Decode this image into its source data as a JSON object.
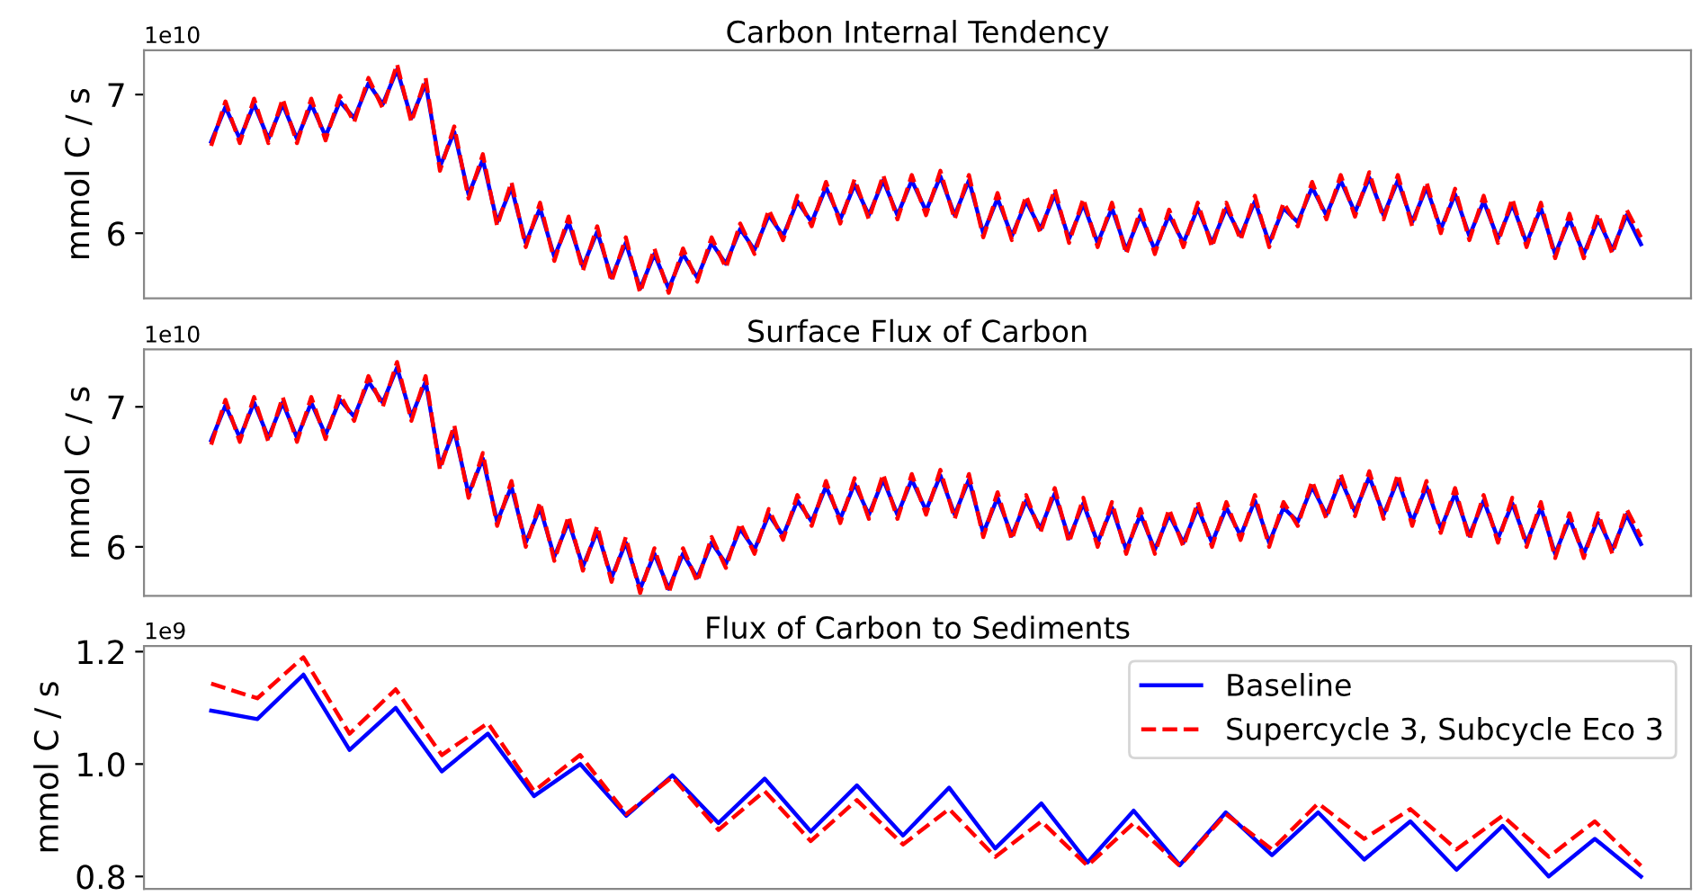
{
  "chart_data": [
    {
      "type": "line",
      "title": "Carbon Internal Tendency",
      "ylabel": "mmol C / s",
      "annotations": [
        "1e10"
      ],
      "categories": [
        null,
        null,
        null,
        null,
        null,
        null,
        null,
        null,
        null,
        null,
        null,
        null,
        null,
        null,
        null,
        null,
        null,
        null,
        null,
        null,
        null,
        null,
        null,
        null,
        null,
        null,
        null,
        null,
        null,
        null,
        null,
        null,
        null,
        null,
        null,
        null,
        null,
        null,
        null,
        null,
        null,
        null,
        null,
        null,
        null,
        null,
        null,
        null,
        null,
        null,
        null,
        null,
        null,
        null,
        null,
        null,
        null,
        null,
        null,
        null,
        null,
        null,
        null,
        null,
        null,
        null,
        null,
        null,
        null,
        null,
        null,
        null,
        null,
        null,
        null,
        null,
        null,
        null,
        null,
        null,
        null,
        null,
        null,
        null,
        null,
        null,
        null,
        null,
        null,
        null,
        null,
        null,
        null,
        null,
        null,
        null,
        null,
        null,
        null,
        null,
        null
      ],
      "ylim": [
        5.53,
        7.32
      ],
      "yticks": [
        6,
        7
      ],
      "tick_labels": "y",
      "grid": false,
      "legend": false,
      "series": [
        {
          "color": "#0000ff",
          "line_style": "solid",
          "values": [
            6.66,
            6.91,
            6.68,
            6.93,
            6.68,
            6.93,
            6.68,
            6.93,
            6.7,
            6.95,
            6.83,
            7.08,
            6.93,
            7.18,
            6.83,
            7.08,
            6.48,
            6.73,
            6.28,
            6.53,
            6.08,
            6.33,
            5.93,
            6.18,
            5.83,
            6.08,
            5.76,
            6.01,
            5.68,
            5.93,
            5.6,
            5.85,
            5.6,
            5.85,
            5.68,
            5.93,
            5.78,
            6.03,
            5.88,
            6.13,
            5.98,
            6.23,
            6.08,
            6.33,
            6.1,
            6.35,
            6.13,
            6.38,
            6.13,
            6.38,
            6.16,
            6.41,
            6.13,
            6.38,
            6.0,
            6.25,
            5.98,
            6.23,
            6.03,
            6.28,
            5.96,
            6.21,
            5.93,
            6.18,
            5.88,
            6.13,
            5.88,
            6.13,
            5.93,
            6.18,
            5.93,
            6.18,
            5.98,
            6.23,
            5.93,
            6.18,
            6.08,
            6.33,
            6.13,
            6.38,
            6.15,
            6.4,
            6.13,
            6.38,
            6.08,
            6.33,
            6.03,
            6.28,
            5.98,
            6.23,
            5.96,
            6.21,
            5.93,
            6.18,
            5.85,
            6.1,
            5.85,
            6.1,
            5.88,
            6.13,
            5.92
          ]
        },
        {
          "color": "#ff0000",
          "line_style": "dashed",
          "values": [
            6.63,
            6.95,
            6.65,
            6.97,
            6.65,
            6.97,
            6.65,
            6.97,
            6.67,
            6.99,
            6.8,
            7.12,
            6.9,
            7.22,
            6.8,
            7.12,
            6.45,
            6.77,
            6.25,
            6.57,
            6.05,
            6.37,
            5.9,
            6.22,
            5.8,
            6.12,
            5.73,
            6.05,
            5.65,
            5.97,
            5.57,
            5.89,
            5.57,
            5.89,
            5.65,
            5.97,
            5.75,
            6.07,
            5.85,
            6.17,
            5.95,
            6.27,
            6.05,
            6.37,
            6.07,
            6.39,
            6.1,
            6.42,
            6.1,
            6.42,
            6.13,
            6.45,
            6.1,
            6.42,
            5.97,
            6.29,
            5.95,
            6.27,
            6.0,
            6.32,
            5.93,
            6.25,
            5.9,
            6.22,
            5.85,
            6.17,
            5.85,
            6.17,
            5.9,
            6.22,
            5.9,
            6.22,
            5.95,
            6.27,
            5.9,
            6.22,
            6.05,
            6.37,
            6.1,
            6.42,
            6.12,
            6.44,
            6.1,
            6.42,
            6.05,
            6.37,
            6.0,
            6.32,
            5.95,
            6.27,
            5.93,
            6.25,
            5.9,
            6.22,
            5.82,
            6.14,
            5.82,
            6.14,
            5.85,
            6.17,
            5.97
          ]
        }
      ]
    },
    {
      "type": "line",
      "title": "Surface Flux of Carbon",
      "ylabel": "mmol C / s",
      "annotations": [
        "1e10"
      ],
      "categories": [
        null,
        null,
        null,
        null,
        null,
        null,
        null,
        null,
        null,
        null,
        null,
        null,
        null,
        null,
        null,
        null,
        null,
        null,
        null,
        null,
        null,
        null,
        null,
        null,
        null,
        null,
        null,
        null,
        null,
        null,
        null,
        null,
        null,
        null,
        null,
        null,
        null,
        null,
        null,
        null,
        null,
        null,
        null,
        null,
        null,
        null,
        null,
        null,
        null,
        null,
        null,
        null,
        null,
        null,
        null,
        null,
        null,
        null,
        null,
        null,
        null,
        null,
        null,
        null,
        null,
        null,
        null,
        null,
        null,
        null,
        null,
        null,
        null,
        null,
        null,
        null,
        null,
        null,
        null,
        null,
        null,
        null,
        null,
        null,
        null,
        null,
        null,
        null,
        null,
        null,
        null,
        null,
        null,
        null,
        null,
        null,
        null,
        null,
        null,
        null,
        null
      ],
      "ylim": [
        5.65,
        7.41
      ],
      "yticks": [
        6,
        7
      ],
      "tick_labels": "y",
      "grid": false,
      "legend": false,
      "series": [
        {
          "color": "#0000ff",
          "line_style": "solid",
          "values": [
            6.76,
            7.01,
            6.78,
            7.03,
            6.78,
            7.03,
            6.78,
            7.03,
            6.8,
            7.05,
            6.93,
            7.18,
            7.03,
            7.28,
            6.93,
            7.18,
            6.58,
            6.83,
            6.38,
            6.63,
            6.18,
            6.43,
            6.03,
            6.28,
            5.93,
            6.18,
            5.86,
            6.11,
            5.78,
            6.03,
            5.7,
            5.95,
            5.7,
            5.95,
            5.78,
            6.03,
            5.88,
            6.13,
            5.98,
            6.23,
            6.08,
            6.33,
            6.18,
            6.43,
            6.2,
            6.45,
            6.23,
            6.48,
            6.23,
            6.48,
            6.26,
            6.51,
            6.23,
            6.48,
            6.1,
            6.35,
            6.08,
            6.33,
            6.13,
            6.38,
            6.06,
            6.31,
            6.03,
            6.28,
            5.98,
            6.23,
            5.98,
            6.23,
            6.03,
            6.28,
            6.03,
            6.28,
            6.08,
            6.33,
            6.03,
            6.28,
            6.18,
            6.43,
            6.23,
            6.48,
            6.25,
            6.5,
            6.23,
            6.48,
            6.18,
            6.43,
            6.13,
            6.38,
            6.08,
            6.33,
            6.06,
            6.31,
            6.03,
            6.28,
            5.95,
            6.2,
            5.95,
            6.2,
            5.98,
            6.23,
            6.02
          ]
        },
        {
          "color": "#ff0000",
          "line_style": "dashed",
          "values": [
            6.73,
            7.05,
            6.75,
            7.07,
            6.75,
            7.07,
            6.75,
            7.07,
            6.77,
            7.09,
            6.9,
            7.22,
            7.0,
            7.32,
            6.9,
            7.22,
            6.55,
            6.87,
            6.35,
            6.67,
            6.15,
            6.47,
            6.0,
            6.32,
            5.9,
            6.22,
            5.83,
            6.15,
            5.75,
            6.07,
            5.67,
            5.99,
            5.67,
            5.99,
            5.75,
            6.07,
            5.85,
            6.17,
            5.95,
            6.27,
            6.05,
            6.37,
            6.15,
            6.47,
            6.17,
            6.49,
            6.2,
            6.52,
            6.2,
            6.52,
            6.23,
            6.55,
            6.2,
            6.52,
            6.07,
            6.39,
            6.05,
            6.37,
            6.1,
            6.42,
            6.03,
            6.35,
            6.0,
            6.32,
            5.95,
            6.27,
            5.95,
            6.27,
            6.0,
            6.32,
            6.0,
            6.32,
            6.05,
            6.37,
            6.0,
            6.32,
            6.15,
            6.47,
            6.2,
            6.52,
            6.22,
            6.54,
            6.2,
            6.52,
            6.15,
            6.47,
            6.1,
            6.42,
            6.05,
            6.37,
            6.03,
            6.35,
            6.0,
            6.32,
            5.92,
            6.24,
            5.92,
            6.24,
            5.95,
            6.27,
            6.07
          ]
        }
      ]
    },
    {
      "type": "line",
      "title": "Flux of Carbon to Sediments",
      "ylabel": "mmol C / s",
      "annotations": [
        "1e9"
      ],
      "categories": [
        null,
        null,
        null,
        null,
        null,
        null,
        null,
        null,
        null,
        null,
        null,
        null,
        null,
        null,
        null,
        null,
        null,
        null,
        null,
        null,
        null,
        null,
        null,
        null,
        null,
        null,
        null,
        null,
        null,
        null,
        null,
        null
      ],
      "ylim": [
        0.778,
        1.21
      ],
      "yticks": [
        {
          "value": 0.8,
          "label": "0.8"
        },
        {
          "value": 1.0,
          "label": "1.0"
        },
        {
          "value": 1.2,
          "label": "1.2"
        }
      ],
      "tick_labels": "y",
      "grid": false,
      "legend": "top right",
      "series": [
        {
          "name": "Baseline",
          "color": "#0000ff",
          "line_style": "solid",
          "values": [
            1.095,
            1.08,
            1.159,
            1.025,
            1.1,
            0.987,
            1.054,
            0.943,
            1.0,
            0.908,
            0.98,
            0.895,
            0.974,
            0.88,
            0.962,
            0.873,
            0.958,
            0.85,
            0.93,
            0.825,
            0.917,
            0.82,
            0.914,
            0.838,
            0.914,
            0.83,
            0.898,
            0.812,
            0.89,
            0.8,
            0.867,
            0.8
          ]
        },
        {
          "name": "Supercycle 3, Subcycle Eco 3",
          "color": "#ff0000",
          "line_style": "dashed",
          "values": [
            1.143,
            1.117,
            1.19,
            1.054,
            1.133,
            1.016,
            1.073,
            0.952,
            1.016,
            0.911,
            0.977,
            0.883,
            0.952,
            0.863,
            0.936,
            0.857,
            0.92,
            0.835,
            0.898,
            0.819,
            0.895,
            0.819,
            0.911,
            0.848,
            0.93,
            0.867,
            0.92,
            0.848,
            0.908,
            0.835,
            0.898,
            0.819
          ]
        }
      ]
    }
  ]
}
